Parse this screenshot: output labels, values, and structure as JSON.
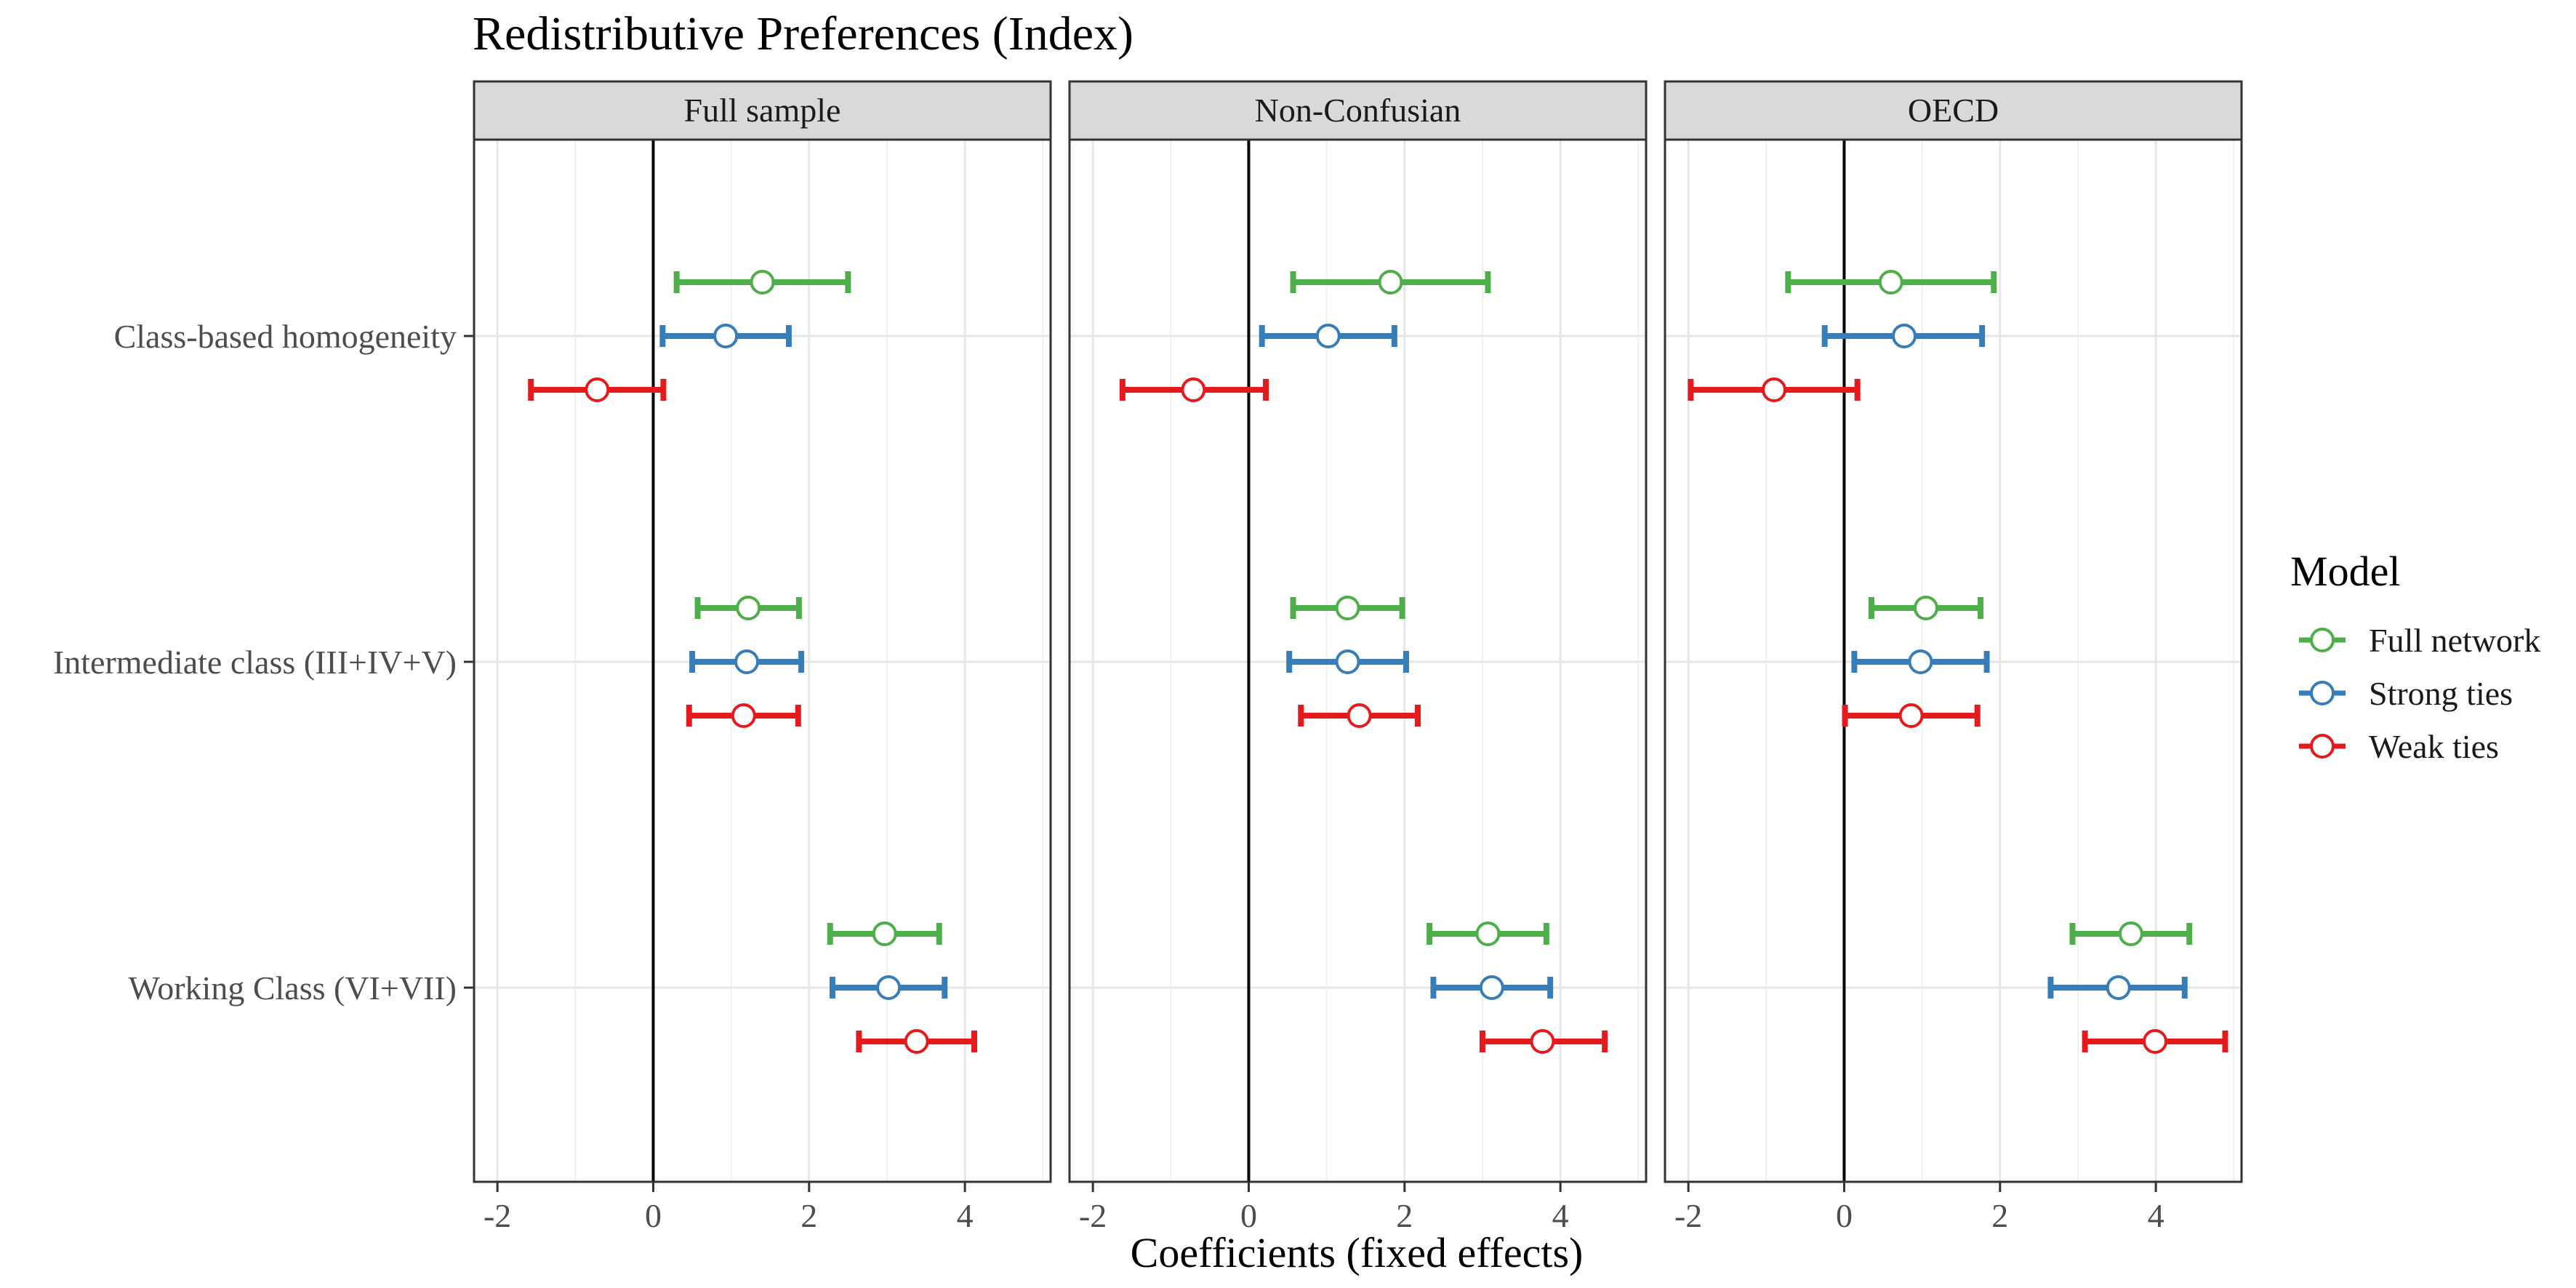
{
  "chart_data": {
    "type": "coefficient-plot",
    "title": "Redistributive Preferences (Index)",
    "xlabel": "Coefficients (fixed effects)",
    "ylabel": "",
    "xlim": [
      -2.3,
      5.1
    ],
    "xticks": [
      -2,
      0,
      2,
      4
    ],
    "xtick_labels": [
      "-2",
      "0",
      "2",
      "4"
    ],
    "reference_line": 0,
    "grid": true,
    "legend": {
      "title": "Model",
      "position": "right",
      "entries": [
        "Full network",
        "Strong ties",
        "Weak ties"
      ]
    },
    "colors": {
      "Full network": "#4daf4a",
      "Strong ties": "#377eb8",
      "Weak ties": "#e41a1c"
    },
    "terms": [
      "Class-based homogeneity",
      "Intermediate class (III+IV+V)",
      "Working Class (VI+VII)"
    ],
    "panels": [
      {
        "name": "Full sample",
        "estimates": {
          "Class-based homogeneity": [
            {
              "model": "Full network",
              "estimate": 1.4,
              "lower": 0.3,
              "upper": 2.5
            },
            {
              "model": "Strong ties",
              "estimate": 0.93,
              "lower": 0.12,
              "upper": 1.74
            },
            {
              "model": "Weak ties",
              "estimate": -0.72,
              "lower": -1.57,
              "upper": 0.13
            }
          ],
          "Intermediate class (III+IV+V)": [
            {
              "model": "Full network",
              "estimate": 1.22,
              "lower": 0.57,
              "upper": 1.87
            },
            {
              "model": "Strong ties",
              "estimate": 1.2,
              "lower": 0.5,
              "upper": 1.9
            },
            {
              "model": "Weak ties",
              "estimate": 1.16,
              "lower": 0.46,
              "upper": 1.86
            }
          ],
          "Working Class (VI+VII)": [
            {
              "model": "Full network",
              "estimate": 2.97,
              "lower": 2.27,
              "upper": 3.67
            },
            {
              "model": "Strong ties",
              "estimate": 3.02,
              "lower": 2.3,
              "upper": 3.74
            },
            {
              "model": "Weak ties",
              "estimate": 3.38,
              "lower": 2.64,
              "upper": 4.12
            }
          ]
        }
      },
      {
        "name": "Non-Confusian",
        "estimates": {
          "Class-based homogeneity": [
            {
              "model": "Full network",
              "estimate": 1.82,
              "lower": 0.57,
              "upper": 3.07
            },
            {
              "model": "Strong ties",
              "estimate": 1.02,
              "lower": 0.17,
              "upper": 1.87
            },
            {
              "model": "Weak ties",
              "estimate": -0.71,
              "lower": -1.62,
              "upper": 0.22
            }
          ],
          "Intermediate class (III+IV+V)": [
            {
              "model": "Full network",
              "estimate": 1.27,
              "lower": 0.57,
              "upper": 1.97
            },
            {
              "model": "Strong ties",
              "estimate": 1.27,
              "lower": 0.52,
              "upper": 2.02
            },
            {
              "model": "Weak ties",
              "estimate": 1.42,
              "lower": 0.67,
              "upper": 2.17
            }
          ],
          "Working Class (VI+VII)": [
            {
              "model": "Full network",
              "estimate": 3.07,
              "lower": 2.32,
              "upper": 3.82
            },
            {
              "model": "Strong ties",
              "estimate": 3.12,
              "lower": 2.37,
              "upper": 3.87
            },
            {
              "model": "Weak ties",
              "estimate": 3.77,
              "lower": 3.0,
              "upper": 4.57
            }
          ]
        }
      },
      {
        "name": "OECD",
        "estimates": {
          "Class-based homogeneity": [
            {
              "model": "Full network",
              "estimate": 0.6,
              "lower": -0.72,
              "upper": 1.92
            },
            {
              "model": "Strong ties",
              "estimate": 0.77,
              "lower": -0.25,
              "upper": 1.77
            },
            {
              "model": "Weak ties",
              "estimate": -0.9,
              "lower": -1.97,
              "upper": 0.17
            }
          ],
          "Intermediate class (III+IV+V)": [
            {
              "model": "Full network",
              "estimate": 1.05,
              "lower": 0.35,
              "upper": 1.75
            },
            {
              "model": "Strong ties",
              "estimate": 0.98,
              "lower": 0.13,
              "upper": 1.83
            },
            {
              "model": "Weak ties",
              "estimate": 0.86,
              "lower": 0.01,
              "upper": 1.71
            }
          ],
          "Working Class (VI+VII)": [
            {
              "model": "Full network",
              "estimate": 3.68,
              "lower": 2.93,
              "upper": 4.43
            },
            {
              "model": "Strong ties",
              "estimate": 3.52,
              "lower": 2.65,
              "upper": 4.37
            },
            {
              "model": "Weak ties",
              "estimate": 3.99,
              "lower": 3.09,
              "upper": 4.89
            }
          ]
        }
      }
    ]
  }
}
